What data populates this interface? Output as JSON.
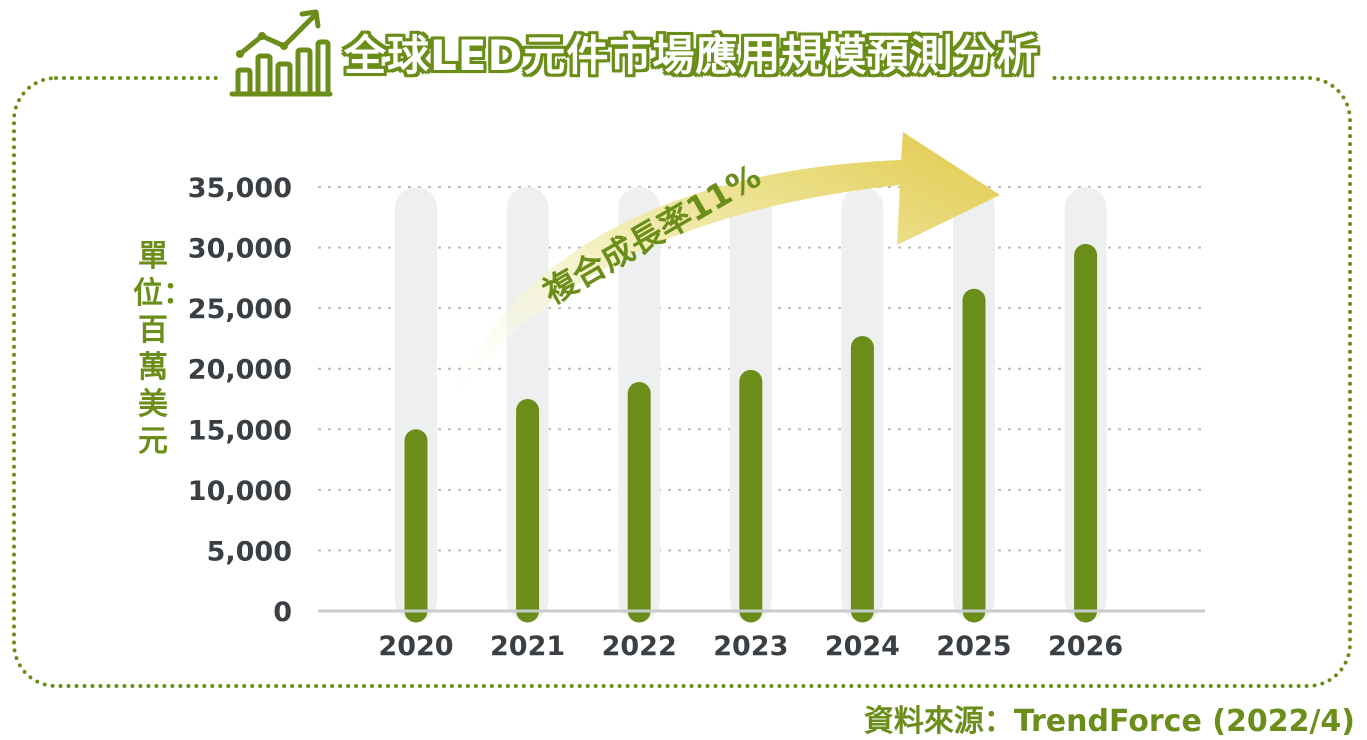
{
  "title": "全球LED元件市場應用規模預測分析",
  "icon": "bar-chart-growth-icon",
  "unit_label": "單位：百萬美元",
  "source": "資料來源：TrendForce (2022/4)",
  "annotation": "複合成長率11%",
  "colors": {
    "bar": "#6b8e1a",
    "track": "#eef0ef",
    "text": "#3a3f44",
    "accent": "#6b8e1a"
  },
  "chart_data": {
    "type": "bar",
    "title": "全球LED元件市場應用規模預測分析",
    "xlabel": "",
    "ylabel": "單位：百萬美元",
    "categories": [
      "2020",
      "2021",
      "2022",
      "2023",
      "2024",
      "2025",
      "2026"
    ],
    "values": [
      15000,
      17500,
      18900,
      19900,
      22700,
      26600,
      30300
    ],
    "ylim": [
      0,
      35000
    ],
    "yticks": [
      "0",
      "5,000",
      "10,000",
      "15,000",
      "20,000",
      "25,000",
      "30,000",
      "35,000"
    ],
    "grid": true,
    "legend": "none"
  }
}
